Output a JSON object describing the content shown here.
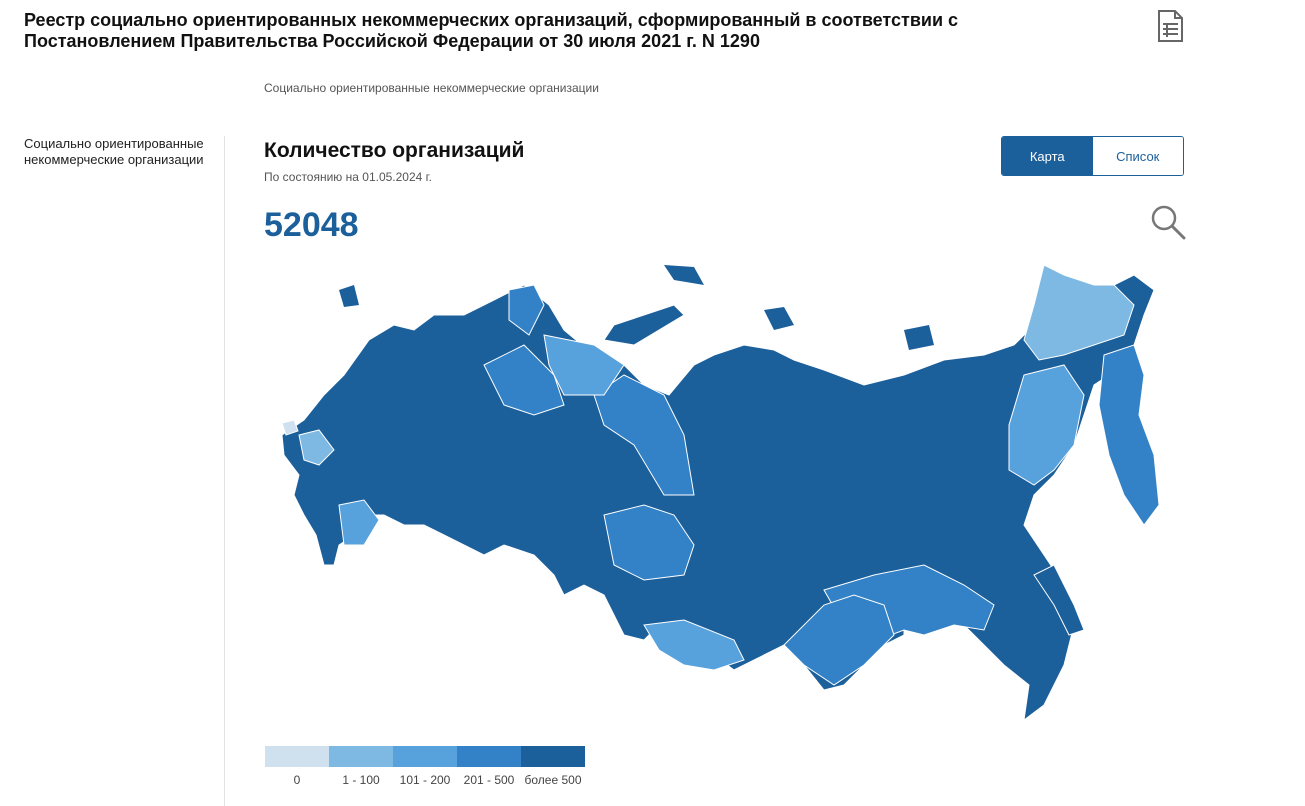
{
  "header": {
    "title": "Реестр социально ориентированных некоммерческих организаций, сформированный в соответствии с Постановлением Правительства Российской Федерации от 30 июля 2021 г. N 1290",
    "doc_icon": "document-list-icon"
  },
  "breadcrumb": {
    "label": "Социально ориентированные некоммерческие организации"
  },
  "sidebar": {
    "items": [
      {
        "label": "Социально ориентированные некоммерческие организации"
      }
    ]
  },
  "main": {
    "section_title": "Количество организаций",
    "as_of": "По состоянию на 01.05.2024 г.",
    "total": "52048",
    "search_icon": "magnifier-icon",
    "view_toggle": {
      "map_label": "Карта",
      "list_label": "Список",
      "active": "map"
    }
  },
  "legend": {
    "items": [
      {
        "label": "0",
        "color": "#cfe1ef"
      },
      {
        "label": "1 - 100",
        "color": "#7db9e2"
      },
      {
        "label": "101 - 200",
        "color": "#57a1dc"
      },
      {
        "label": "201 - 500",
        "color": "#3382c7"
      },
      {
        "label": "более 500",
        "color": "#1b5f9b"
      }
    ]
  },
  "colors": {
    "accent": "#1b5f9b",
    "map_land": "#1b5f9b"
  }
}
